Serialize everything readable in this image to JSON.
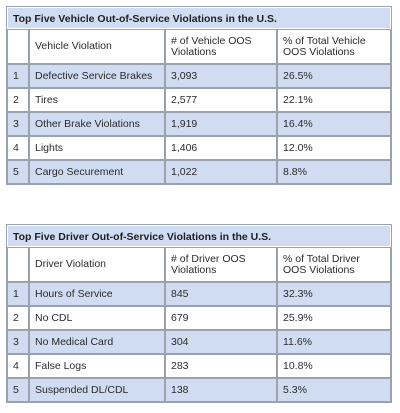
{
  "vehicle_table": {
    "title": "Top Five Vehicle Out-of-Service Violations in the U.S.",
    "headers": [
      "",
      "Vehicle Violation",
      "# of Vehicle OOS Violations",
      "% of Total Vehicle OOS Violations"
    ],
    "rows": [
      {
        "rank": "1",
        "violation": "Defective Service Brakes",
        "count": "3,093",
        "percent": "26.5%"
      },
      {
        "rank": "2",
        "violation": "Tires",
        "count": "2,577",
        "percent": "22.1%"
      },
      {
        "rank": "3",
        "violation": "Other Brake Violations",
        "count": "1,919",
        "percent": "16.4%"
      },
      {
        "rank": "4",
        "violation": "Lights",
        "count": "1,406",
        "percent": "12.0%"
      },
      {
        "rank": "5",
        "violation": "Cargo Securement",
        "count": "1,022",
        "percent": "8.8%"
      }
    ]
  },
  "driver_table": {
    "title": "Top Five Driver Out-of-Service Violations in the U.S.",
    "headers": [
      "",
      "Driver Violation",
      "# of Driver OOS Violations",
      "% of Total Driver OOS Violations"
    ],
    "rows": [
      {
        "rank": "1",
        "violation": "Hours of Service",
        "count": "845",
        "percent": "32.3%"
      },
      {
        "rank": "2",
        "violation": "No CDL",
        "count": "679",
        "percent": "25.9%"
      },
      {
        "rank": "3",
        "violation": "No Medical Card",
        "count": "304",
        "percent": "11.6%"
      },
      {
        "rank": "4",
        "violation": "False Logs",
        "count": "283",
        "percent": "10.8%"
      },
      {
        "rank": "5",
        "violation": "Suspended DL/CDL",
        "count": "138",
        "percent": "5.3%"
      }
    ]
  },
  "colors": {
    "shade": "#cfdcf1",
    "border": "#9aa3ad"
  }
}
